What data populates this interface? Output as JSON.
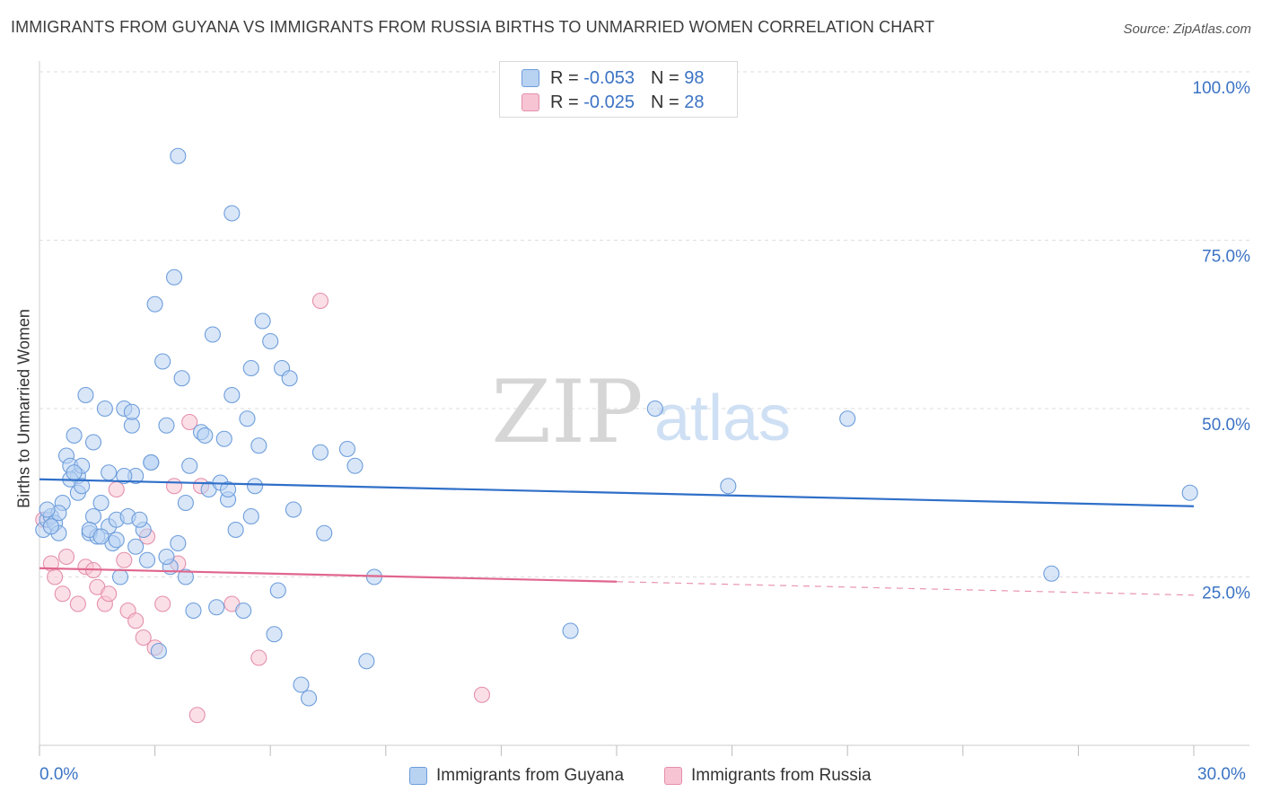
{
  "header": {
    "title": "IMMIGRANTS FROM GUYANA VS IMMIGRANTS FROM RUSSIA BIRTHS TO UNMARRIED WOMEN CORRELATION CHART",
    "source": "Source: ZipAtlas.com"
  },
  "watermark": {
    "zip": "ZIP",
    "atlas": "atlas"
  },
  "colors": {
    "guyana_fill": "#b8d2f2",
    "guyana_stroke": "#6d9ddb",
    "guyana_line": "#2f6fc8",
    "russia_fill": "#f7c4d4",
    "russia_stroke": "#e48fab",
    "russia_line": "#e0668e",
    "tick_text": "#3b73c4",
    "grid": "#dedede"
  },
  "legend": {
    "guyana": {
      "r_label": "R =",
      "r_value": "-0.053",
      "n_label": "N =",
      "n_value": "98"
    },
    "russia": {
      "r_label": "R =",
      "r_value": "-0.025",
      "n_label": "N =",
      "n_value": "28"
    }
  },
  "chart_data": {
    "type": "scatter",
    "title": "IMMIGRANTS FROM GUYANA VS IMMIGRANTS FROM RUSSIA BIRTHS TO UNMARRIED WOMEN CORRELATION CHART",
    "xlabel": "",
    "ylabel": "Births to Unmarried Women",
    "xlim": [
      0,
      30
    ],
    "ylim": [
      0,
      100
    ],
    "x_tick_labels": [
      "0.0%",
      "30.0%"
    ],
    "y_ticks": [
      25,
      50,
      75,
      100
    ],
    "y_tick_labels": [
      "25.0%",
      "50.0%",
      "75.0%",
      "100.0%"
    ],
    "grid": true,
    "series": [
      {
        "name": "Immigrants from Guyana",
        "r": -0.053,
        "n": 98,
        "trend": {
          "x": [
            0,
            30
          ],
          "y": [
            39.5,
            35.5
          ]
        },
        "points": [
          [
            0.1,
            32.0
          ],
          [
            0.2,
            33.5
          ],
          [
            0.3,
            34.0
          ],
          [
            0.4,
            33.0
          ],
          [
            0.5,
            31.5
          ],
          [
            0.6,
            36.0
          ],
          [
            0.7,
            43.0
          ],
          [
            0.8,
            41.5
          ],
          [
            0.9,
            46.0
          ],
          [
            1.0,
            40.0
          ],
          [
            0.8,
            39.5
          ],
          [
            1.1,
            41.5
          ],
          [
            1.0,
            37.5
          ],
          [
            1.2,
            52.0
          ],
          [
            1.3,
            31.5
          ],
          [
            1.4,
            45.0
          ],
          [
            1.4,
            34.0
          ],
          [
            1.5,
            31.0
          ],
          [
            1.6,
            36.0
          ],
          [
            1.7,
            50.0
          ],
          [
            1.8,
            32.5
          ],
          [
            1.8,
            40.5
          ],
          [
            1.9,
            30.0
          ],
          [
            2.0,
            33.5
          ],
          [
            2.1,
            25.0
          ],
          [
            2.2,
            50.0
          ],
          [
            2.3,
            34.0
          ],
          [
            2.4,
            47.5
          ],
          [
            2.4,
            49.5
          ],
          [
            2.5,
            29.5
          ],
          [
            2.5,
            40.0
          ],
          [
            2.7,
            32.0
          ],
          [
            2.8,
            27.5
          ],
          [
            2.9,
            42.0
          ],
          [
            3.0,
            65.5
          ],
          [
            3.2,
            57.0
          ],
          [
            3.3,
            47.5
          ],
          [
            3.4,
            26.5
          ],
          [
            3.5,
            69.5
          ],
          [
            3.6,
            87.5
          ],
          [
            3.6,
            30.0
          ],
          [
            3.7,
            54.5
          ],
          [
            3.8,
            36.0
          ],
          [
            3.9,
            41.5
          ],
          [
            4.0,
            20.0
          ],
          [
            4.2,
            46.5
          ],
          [
            4.4,
            38.0
          ],
          [
            4.5,
            61.0
          ],
          [
            4.6,
            20.5
          ],
          [
            4.7,
            39.0
          ],
          [
            4.8,
            45.5
          ],
          [
            4.9,
            36.5
          ],
          [
            5.0,
            79.0
          ],
          [
            5.0,
            52.0
          ],
          [
            5.1,
            32.0
          ],
          [
            5.3,
            20.0
          ],
          [
            5.4,
            48.5
          ],
          [
            5.5,
            56.0
          ],
          [
            5.6,
            38.5
          ],
          [
            5.7,
            44.5
          ],
          [
            5.8,
            63.0
          ],
          [
            6.0,
            60.0
          ],
          [
            6.1,
            16.5
          ],
          [
            6.3,
            56.0
          ],
          [
            6.5,
            54.5
          ],
          [
            6.6,
            35.0
          ],
          [
            6.8,
            9.0
          ],
          [
            7.0,
            7.0
          ],
          [
            7.3,
            43.5
          ],
          [
            7.4,
            31.5
          ],
          [
            8.0,
            44.0
          ],
          [
            8.2,
            41.5
          ],
          [
            8.5,
            12.5
          ],
          [
            8.7,
            25.0
          ],
          [
            13.8,
            17.0
          ],
          [
            16.0,
            50.0
          ],
          [
            17.9,
            38.5
          ],
          [
            21.0,
            48.5
          ],
          [
            26.3,
            25.5
          ],
          [
            29.9,
            37.5
          ],
          [
            0.3,
            32.5
          ],
          [
            0.5,
            34.5
          ],
          [
            0.9,
            40.5
          ],
          [
            1.1,
            38.5
          ],
          [
            1.3,
            32.0
          ],
          [
            1.6,
            31.0
          ],
          [
            2.0,
            30.5
          ],
          [
            2.2,
            40.0
          ],
          [
            2.6,
            33.5
          ],
          [
            2.9,
            42.0
          ],
          [
            3.1,
            14.0
          ],
          [
            3.3,
            28.0
          ],
          [
            3.8,
            25.0
          ],
          [
            4.3,
            46.0
          ],
          [
            4.9,
            38.0
          ],
          [
            5.5,
            34.0
          ],
          [
            6.2,
            23.0
          ],
          [
            0.2,
            35.0
          ]
        ]
      },
      {
        "name": "Immigrants from Russia",
        "r": -0.025,
        "n": 28,
        "trend": {
          "x": [
            0,
            15
          ],
          "y": [
            26.3,
            24.3
          ]
        },
        "trend_dashed": {
          "x": [
            15,
            30
          ],
          "y": [
            24.3,
            22.3
          ]
        },
        "points": [
          [
            0.1,
            33.5
          ],
          [
            0.3,
            27.0
          ],
          [
            0.4,
            25.0
          ],
          [
            0.6,
            22.5
          ],
          [
            0.7,
            28.0
          ],
          [
            1.0,
            21.0
          ],
          [
            1.2,
            26.5
          ],
          [
            1.4,
            26.0
          ],
          [
            1.5,
            23.5
          ],
          [
            1.7,
            21.0
          ],
          [
            1.8,
            22.5
          ],
          [
            2.0,
            38.0
          ],
          [
            2.2,
            27.5
          ],
          [
            2.3,
            20.0
          ],
          [
            2.5,
            18.5
          ],
          [
            2.7,
            16.0
          ],
          [
            2.8,
            31.0
          ],
          [
            3.0,
            14.5
          ],
          [
            3.2,
            21.0
          ],
          [
            3.5,
            38.5
          ],
          [
            3.6,
            27.0
          ],
          [
            3.9,
            48.0
          ],
          [
            4.1,
            4.5
          ],
          [
            4.2,
            38.5
          ],
          [
            5.0,
            21.0
          ],
          [
            5.7,
            13.0
          ],
          [
            7.3,
            66.0
          ],
          [
            11.5,
            7.5
          ]
        ]
      }
    ]
  }
}
